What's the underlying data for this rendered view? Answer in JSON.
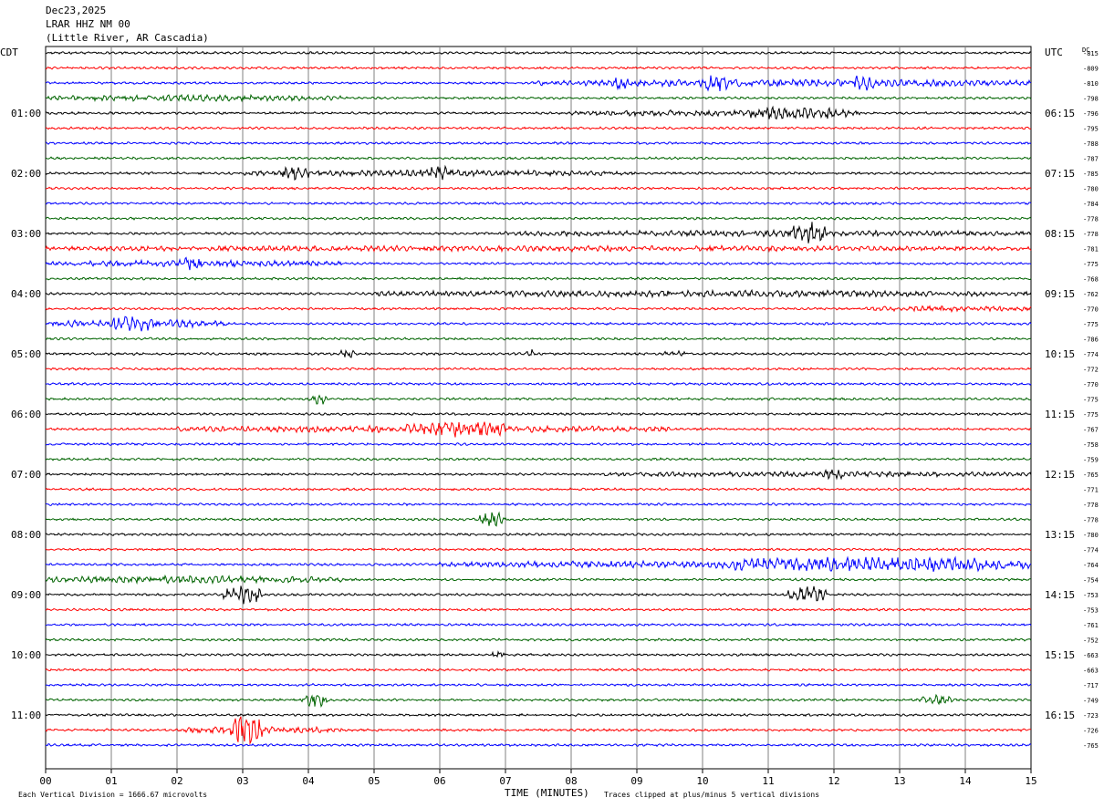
{
  "header": {
    "date": "Dec23,2025",
    "station": "LRAR HHZ NM 00",
    "location": "(Little River, AR Cascadia)"
  },
  "axes": {
    "left_timezone": "CDT",
    "right_timezone": "UTC",
    "dc_label": "DC",
    "x_label": "TIME (MINUTES)",
    "x_ticks": [
      "00",
      "01",
      "02",
      "03",
      "04",
      "05",
      "06",
      "07",
      "08",
      "09",
      "10",
      "11",
      "12",
      "13",
      "14",
      "15"
    ],
    "left_hours": [
      "01:00",
      "02:00",
      "03:00",
      "04:00",
      "05:00",
      "06:00",
      "07:00",
      "08:00",
      "09:00",
      "10:00",
      "11:00"
    ],
    "right_hours": [
      "06:15",
      "07:15",
      "08:15",
      "09:15",
      "10:15",
      "11:15",
      "12:15",
      "13:15",
      "14:15",
      "15:15",
      "16:15"
    ]
  },
  "footer": {
    "scale_note": "Each Vertical Division = 1666.67 microvolts",
    "clip_note": "Traces clipped at plus/minus 5 vertical divisions"
  },
  "colors": {
    "trace_cycle": [
      "#000000",
      "#ff0000",
      "#0000ff",
      "#006400"
    ],
    "grid": "#808080"
  },
  "chart_data": {
    "type": "line",
    "title": "LRAR HHZ NM 00",
    "x_range_minutes": [
      0,
      15
    ],
    "rows_per_hour": 4,
    "row_minutes": 15,
    "dc_offsets": [
      -815,
      -809,
      -810,
      -798,
      -796,
      -795,
      -788,
      -787,
      -785,
      -780,
      -784,
      -778,
      -778,
      -781,
      -775,
      -768,
      -762,
      -770,
      -775,
      -786,
      -774,
      -772,
      -770,
      -775,
      -775,
      -767,
      -758,
      -759,
      -765,
      -771,
      -778,
      -778,
      -780,
      -774,
      -764,
      -754,
      -753,
      -753,
      -761,
      -752,
      -663,
      -663,
      -717,
      -749,
      -723,
      -726,
      -765
    ],
    "events": [
      {
        "row": 2,
        "start_min": 7.5,
        "end_min": 15,
        "amp": 0.5
      },
      {
        "row": 2,
        "start_min": 8.6,
        "end_min": 8.9,
        "amp": 1.0
      },
      {
        "row": 2,
        "start_min": 10.0,
        "end_min": 10.4,
        "amp": 1.1
      },
      {
        "row": 2,
        "start_min": 12.3,
        "end_min": 12.6,
        "amp": 1.0
      },
      {
        "row": 3,
        "start_min": 0,
        "end_min": 4.5,
        "amp": 0.4
      },
      {
        "row": 4,
        "start_min": 8.0,
        "end_min": 12.0,
        "amp": 0.4
      },
      {
        "row": 4,
        "start_min": 10.6,
        "end_min": 12.4,
        "amp": 0.8
      },
      {
        "row": 8,
        "start_min": 3.0,
        "end_min": 9.0,
        "amp": 0.4
      },
      {
        "row": 8,
        "start_min": 3.6,
        "end_min": 4.0,
        "amp": 0.9
      },
      {
        "row": 8,
        "start_min": 5.7,
        "end_min": 6.2,
        "amp": 0.9
      },
      {
        "row": 12,
        "start_min": 7.0,
        "end_min": 15,
        "amp": 0.4
      },
      {
        "row": 12,
        "start_min": 11.3,
        "end_min": 11.9,
        "amp": 2.0
      },
      {
        "row": 13,
        "start_min": 0,
        "end_min": 15,
        "amp": 0.35
      },
      {
        "row": 14,
        "start_min": 0,
        "end_min": 4.5,
        "amp": 0.45
      },
      {
        "row": 14,
        "start_min": 2.0,
        "end_min": 2.4,
        "amp": 0.9
      },
      {
        "row": 16,
        "start_min": 5.0,
        "end_min": 15,
        "amp": 0.45
      },
      {
        "row": 17,
        "start_min": 12.5,
        "end_min": 15,
        "amp": 0.35
      },
      {
        "row": 18,
        "start_min": 0,
        "end_min": 2.8,
        "amp": 0.6
      },
      {
        "row": 18,
        "start_min": 1.0,
        "end_min": 1.6,
        "amp": 1.0
      },
      {
        "row": 20,
        "start_min": 4.5,
        "end_min": 4.7,
        "amp": 0.9
      },
      {
        "row": 20,
        "start_min": 7.3,
        "end_min": 7.5,
        "amp": 0.7
      },
      {
        "row": 20,
        "start_min": 9.4,
        "end_min": 9.8,
        "amp": 0.5
      },
      {
        "row": 23,
        "start_min": 4.0,
        "end_min": 4.3,
        "amp": 0.9
      },
      {
        "row": 25,
        "start_min": 2.0,
        "end_min": 9.5,
        "amp": 0.45
      },
      {
        "row": 25,
        "start_min": 5.5,
        "end_min": 7.0,
        "amp": 1.0
      },
      {
        "row": 28,
        "start_min": 8.5,
        "end_min": 15,
        "amp": 0.3
      },
      {
        "row": 28,
        "start_min": 11.8,
        "end_min": 12.2,
        "amp": 0.7
      },
      {
        "row": 31,
        "start_min": 6.6,
        "end_min": 7.0,
        "amp": 1.6
      },
      {
        "row": 34,
        "start_min": 6.0,
        "end_min": 15,
        "amp": 0.5
      },
      {
        "row": 34,
        "start_min": 10.5,
        "end_min": 15,
        "amp": 0.9
      },
      {
        "row": 35,
        "start_min": 0,
        "end_min": 4.5,
        "amp": 0.55
      },
      {
        "row": 36,
        "start_min": 2.7,
        "end_min": 3.3,
        "amp": 1.6
      },
      {
        "row": 36,
        "start_min": 11.3,
        "end_min": 11.9,
        "amp": 1.5
      },
      {
        "row": 40,
        "start_min": 6.8,
        "end_min": 7.0,
        "amp": 0.8
      },
      {
        "row": 43,
        "start_min": 3.9,
        "end_min": 4.3,
        "amp": 1.3
      },
      {
        "row": 43,
        "start_min": 13.3,
        "end_min": 13.8,
        "amp": 0.8
      },
      {
        "row": 45,
        "start_min": 2.0,
        "end_min": 4.5,
        "amp": 0.5
      },
      {
        "row": 45,
        "start_min": 2.8,
        "end_min": 3.3,
        "amp": 3.2
      }
    ]
  }
}
